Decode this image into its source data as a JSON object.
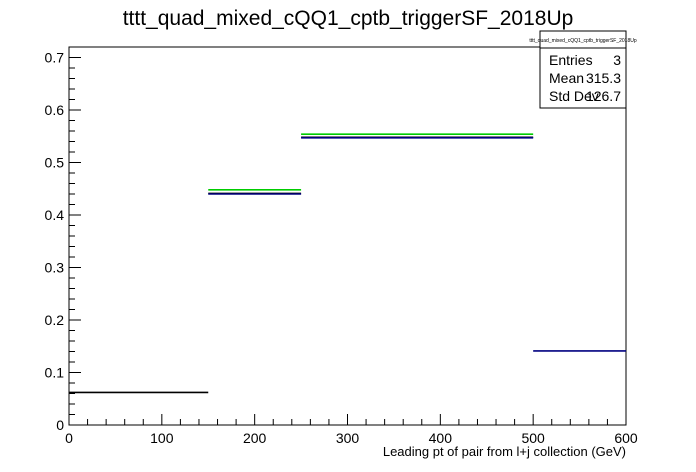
{
  "chart_data": {
    "type": "histogram",
    "title": "tttt_quad_mixed_cQQ1_cptb_triggerSF_2018Up",
    "xlabel": "Leading pt of pair from l+j collection (GeV)",
    "ylabel": "",
    "xlim": [
      0,
      600
    ],
    "ylim": [
      0,
      0.72
    ],
    "x_ticks": [
      0,
      100,
      200,
      300,
      400,
      500,
      600
    ],
    "y_ticks": [
      0,
      0.1,
      0.2,
      0.3,
      0.4,
      0.5,
      0.6,
      0.7
    ],
    "x_tick_labels": [
      "0",
      "100",
      "200",
      "300",
      "400",
      "500",
      "600"
    ],
    "y_tick_labels": [
      "0",
      "0.1",
      "0.2",
      "0.3",
      "0.4",
      "0.5",
      "0.6",
      "0.7"
    ],
    "grid": false,
    "series": [
      {
        "color": "#000000",
        "bins": [
          {
            "x0": 0,
            "x1": 150,
            "y": 0.062
          },
          {
            "x0": 150,
            "x1": 250,
            "y": 0.441
          },
          {
            "x0": 250,
            "x1": 500,
            "y": 0.548
          }
        ]
      },
      {
        "color": "#000080",
        "bins": [
          {
            "x0": 150,
            "x1": 250,
            "y": 0.44
          },
          {
            "x0": 250,
            "x1": 500,
            "y": 0.547
          },
          {
            "x0": 500,
            "x1": 600,
            "y": 0.141
          }
        ]
      },
      {
        "color": "#00cc00",
        "bins": [
          {
            "x0": 150,
            "x1": 250,
            "y": 0.448
          },
          {
            "x0": 250,
            "x1": 500,
            "y": 0.554
          }
        ]
      }
    ],
    "stats_box": {
      "title": "tttt_quad_mixed_cQQ1_cptb_triggerSF_2018Up",
      "rows": [
        {
          "label": "Entries",
          "value": "3"
        },
        {
          "label": "Mean",
          "value": "315.3"
        },
        {
          "label": "Std Dev",
          "value": "126.7"
        }
      ]
    }
  }
}
